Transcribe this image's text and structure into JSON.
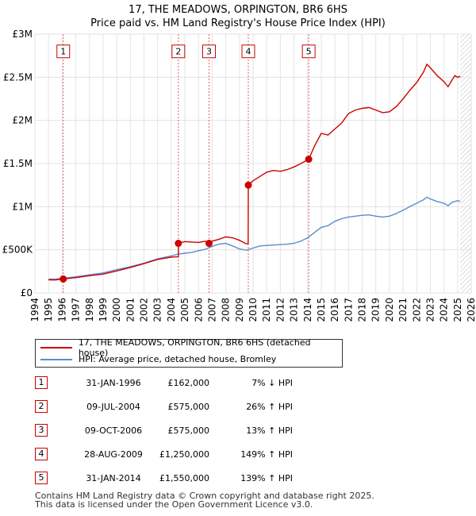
{
  "chart_data": {
    "type": "line",
    "title": "17, THE MEADOWS, ORPINGTON, BR6 6HS",
    "subtitle": "Price paid vs. HM Land Registry's House Price Index (HPI)",
    "x_ticks": [
      "1994",
      "1995",
      "1996",
      "1997",
      "1998",
      "1999",
      "2000",
      "2001",
      "2002",
      "2003",
      "2004",
      "2005",
      "2006",
      "2007",
      "2008",
      "2009",
      "2010",
      "2011",
      "2012",
      "2013",
      "2014",
      "2015",
      "2016",
      "2017",
      "2018",
      "2019",
      "2020",
      "2021",
      "2022",
      "2023",
      "2024",
      "2025",
      "2026"
    ],
    "y_ticks": [
      {
        "value": 0,
        "label": "£0"
      },
      {
        "value": 500000,
        "label": "£500K"
      },
      {
        "value": 1000000,
        "label": "£1M"
      },
      {
        "value": 1500000,
        "label": "£1.5M"
      },
      {
        "value": 2000000,
        "label": "£2M"
      },
      {
        "value": 2500000,
        "label": "£2.5M"
      },
      {
        "value": 3000000,
        "label": "£3M"
      }
    ],
    "xlim": [
      1994,
      2026
    ],
    "ylim": [
      0,
      3000000
    ],
    "grid": true,
    "series": [
      {
        "name": "17, THE MEADOWS, ORPINGTON, BR6 6HS (detached house)",
        "color": "#cc0000",
        "points": [
          [
            1995.0,
            152000
          ],
          [
            1995.5,
            150000
          ],
          [
            1996.08,
            162000
          ],
          [
            1997.0,
            178000
          ],
          [
            1998.0,
            200000
          ],
          [
            1999.0,
            218000
          ],
          [
            2000.0,
            255000
          ],
          [
            2001.0,
            295000
          ],
          [
            2002.0,
            340000
          ],
          [
            2003.0,
            388000
          ],
          [
            2004.0,
            415000
          ],
          [
            2004.52,
            420000
          ],
          [
            2004.53,
            575000
          ],
          [
            2005.0,
            595000
          ],
          [
            2005.5,
            590000
          ],
          [
            2006.0,
            585000
          ],
          [
            2006.5,
            600000
          ],
          [
            2006.77,
            575000
          ],
          [
            2007.0,
            600000
          ],
          [
            2007.5,
            622000
          ],
          [
            2008.0,
            650000
          ],
          [
            2008.5,
            640000
          ],
          [
            2009.0,
            610000
          ],
          [
            2009.5,
            570000
          ],
          [
            2009.64,
            570000
          ],
          [
            2009.65,
            1250000
          ],
          [
            2010.0,
            1300000
          ],
          [
            2010.5,
            1350000
          ],
          [
            2011.0,
            1400000
          ],
          [
            2011.5,
            1420000
          ],
          [
            2012.0,
            1410000
          ],
          [
            2012.5,
            1430000
          ],
          [
            2013.0,
            1460000
          ],
          [
            2013.5,
            1500000
          ],
          [
            2014.08,
            1550000
          ],
          [
            2014.5,
            1700000
          ],
          [
            2015.0,
            1850000
          ],
          [
            2015.5,
            1830000
          ],
          [
            2016.0,
            1900000
          ],
          [
            2016.5,
            1970000
          ],
          [
            2017.0,
            2080000
          ],
          [
            2017.5,
            2120000
          ],
          [
            2018.0,
            2140000
          ],
          [
            2018.5,
            2150000
          ],
          [
            2019.0,
            2120000
          ],
          [
            2019.5,
            2090000
          ],
          [
            2020.0,
            2100000
          ],
          [
            2020.5,
            2160000
          ],
          [
            2021.0,
            2250000
          ],
          [
            2021.5,
            2350000
          ],
          [
            2022.0,
            2440000
          ],
          [
            2022.5,
            2560000
          ],
          [
            2022.75,
            2650000
          ],
          [
            2023.0,
            2610000
          ],
          [
            2023.5,
            2520000
          ],
          [
            2024.0,
            2450000
          ],
          [
            2024.3,
            2390000
          ],
          [
            2024.6,
            2470000
          ],
          [
            2024.8,
            2520000
          ],
          [
            2025.0,
            2500000
          ],
          [
            2025.2,
            2510000
          ]
        ]
      },
      {
        "name": "HPI: Average price, detached house, Bromley",
        "color": "#5b8ccc",
        "points": [
          [
            1995.0,
            160000
          ],
          [
            1995.5,
            162000
          ],
          [
            1996.0,
            168000
          ],
          [
            1997.0,
            187000
          ],
          [
            1998.0,
            210000
          ],
          [
            1999.0,
            232000
          ],
          [
            2000.0,
            270000
          ],
          [
            2001.0,
            305000
          ],
          [
            2002.0,
            345000
          ],
          [
            2003.0,
            395000
          ],
          [
            2004.0,
            430000
          ],
          [
            2004.5,
            450000
          ],
          [
            2005.0,
            460000
          ],
          [
            2005.5,
            470000
          ],
          [
            2006.0,
            490000
          ],
          [
            2006.5,
            505000
          ],
          [
            2007.0,
            540000
          ],
          [
            2007.5,
            565000
          ],
          [
            2008.0,
            575000
          ],
          [
            2008.5,
            545000
          ],
          [
            2009.0,
            510000
          ],
          [
            2009.5,
            495000
          ],
          [
            2010.0,
            520000
          ],
          [
            2010.5,
            545000
          ],
          [
            2011.0,
            550000
          ],
          [
            2011.5,
            555000
          ],
          [
            2012.0,
            560000
          ],
          [
            2012.5,
            565000
          ],
          [
            2013.0,
            575000
          ],
          [
            2013.5,
            600000
          ],
          [
            2014.0,
            640000
          ],
          [
            2014.5,
            700000
          ],
          [
            2015.0,
            760000
          ],
          [
            2015.5,
            780000
          ],
          [
            2016.0,
            830000
          ],
          [
            2016.5,
            860000
          ],
          [
            2017.0,
            880000
          ],
          [
            2017.5,
            890000
          ],
          [
            2018.0,
            900000
          ],
          [
            2018.5,
            905000
          ],
          [
            2019.0,
            890000
          ],
          [
            2019.5,
            880000
          ],
          [
            2020.0,
            890000
          ],
          [
            2020.5,
            920000
          ],
          [
            2021.0,
            960000
          ],
          [
            2021.5,
            1000000
          ],
          [
            2022.0,
            1040000
          ],
          [
            2022.5,
            1080000
          ],
          [
            2022.75,
            1110000
          ],
          [
            2023.0,
            1090000
          ],
          [
            2023.5,
            1060000
          ],
          [
            2024.0,
            1040000
          ],
          [
            2024.3,
            1010000
          ],
          [
            2024.6,
            1050000
          ],
          [
            2025.0,
            1070000
          ],
          [
            2025.2,
            1060000
          ]
        ]
      }
    ],
    "sales": [
      {
        "num": "1",
        "x": 1996.08,
        "value": 162000
      },
      {
        "num": "2",
        "x": 2004.52,
        "value": 575000
      },
      {
        "num": "3",
        "x": 2006.77,
        "value": 575000
      },
      {
        "num": "4",
        "x": 2009.65,
        "value": 1250000
      },
      {
        "num": "5",
        "x": 2014.08,
        "value": 1550000
      }
    ],
    "marker_label_value": 2800000,
    "hatch_start_x": 2025.2
  },
  "legend": {
    "items": [
      {
        "label": "17, THE MEADOWS, ORPINGTON, BR6 6HS (detached house)",
        "color": "#cc0000"
      },
      {
        "label": "HPI: Average price, detached house, Bromley",
        "color": "#5b8ccc"
      }
    ]
  },
  "sales_table": [
    {
      "num": "1",
      "date": "31-JAN-1996",
      "price": "£162,000",
      "hpi": "7% ↓ HPI"
    },
    {
      "num": "2",
      "date": "09-JUL-2004",
      "price": "£575,000",
      "hpi": "26% ↑ HPI"
    },
    {
      "num": "3",
      "date": "09-OCT-2006",
      "price": "£575,000",
      "hpi": "13% ↑ HPI"
    },
    {
      "num": "4",
      "date": "28-AUG-2009",
      "price": "£1,250,000",
      "hpi": "149% ↑ HPI"
    },
    {
      "num": "5",
      "date": "31-JAN-2014",
      "price": "£1,550,000",
      "hpi": "139% ↑ HPI"
    }
  ],
  "footer": {
    "line1": "Contains HM Land Registry data © Crown copyright and database right 2025.",
    "line2": "This data is licensed under the Open Government Licence v3.0."
  }
}
